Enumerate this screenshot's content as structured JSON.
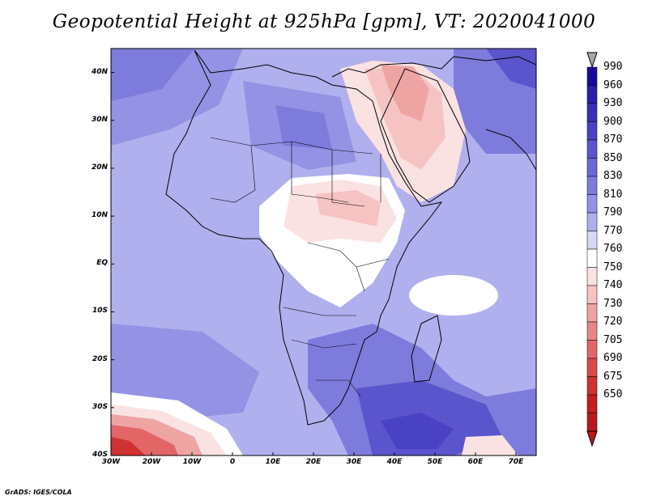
{
  "title": "Geopotential Height at 925hPa [gpm], VT: 2020041000",
  "credit": "GrADS: IGES/COLA",
  "map": {
    "variable": "Geopotential Height",
    "level": "925hPa",
    "units": "gpm",
    "valid_time": "2020041000",
    "lon_range": [
      -30,
      75
    ],
    "lat_range": [
      -40,
      45
    ],
    "lat_labels": [
      "40N",
      "30N",
      "20N",
      "10N",
      "EQ",
      "10S",
      "20S",
      "30S",
      "40S"
    ],
    "lat_values": [
      40,
      30,
      20,
      10,
      0,
      -10,
      -20,
      -30,
      -40
    ],
    "lon_labels": [
      "30W",
      "20W",
      "10W",
      "0",
      "10E",
      "20E",
      "30E",
      "40E",
      "50E",
      "60E",
      "70E"
    ],
    "lon_values": [
      -30,
      -20,
      -10,
      0,
      10,
      20,
      30,
      40,
      50,
      60,
      70
    ]
  },
  "colorbar": {
    "levels": [
      "990",
      "960",
      "930",
      "900",
      "870",
      "850",
      "830",
      "810",
      "790",
      "770",
      "760",
      "750",
      "740",
      "730",
      "720",
      "705",
      "690",
      "675",
      "650"
    ],
    "colors": [
      "#1a0a9a",
      "#2a1eaa",
      "#3a30b8",
      "#4a42c4",
      "#5a55cc",
      "#6a68d4",
      "#7d7cdc",
      "#9392e4",
      "#b1b0ee",
      "#d6d6f7",
      "#ffffff",
      "#fbe2e2",
      "#f6c3c3",
      "#efa4a4",
      "#e98585",
      "#e26666",
      "#da4a4a",
      "#d03232",
      "#c41e1e",
      "#b71c1c"
    ],
    "over_color": "#a9a9a9",
    "under_color": "#b71c1c"
  }
}
